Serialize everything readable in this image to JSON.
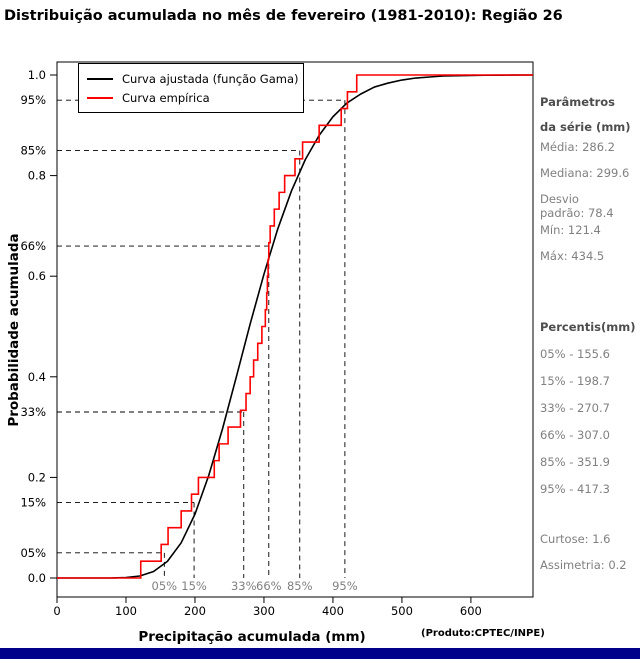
{
  "title": "Distribuição acumulada no mês de fevereiro (1981-2010): Região 26",
  "footer_color": "#00008b",
  "side_panel": {
    "heading_line1": "Parâmetros",
    "heading_line2": "da série (mm)",
    "stats": [
      "Média: 286.2",
      "Mediana: 299.6",
      "Desvio",
      "padrão: 78.4",
      "Mín: 121.4",
      "Máx: 434.5"
    ],
    "percentis_heading": "Percentis(mm)",
    "extra": [
      "Curtose: 1.6",
      "Assimetria: 0.2"
    ]
  },
  "chart_data": {
    "type": "line",
    "title": "Distribuição acumulada no mês de fevereiro (1981-2010): Região 26",
    "xlabel": "Precipitação acumulada (mm)",
    "xlabel_note": "(Produto:CPTEC/INPE)",
    "ylabel": "Probabilidade acumulada",
    "xlim": [
      0,
      690
    ],
    "ylim": [
      0,
      1
    ],
    "grid": false,
    "legend_position": "top-left",
    "x_ticks": [
      0,
      100,
      200,
      300,
      400,
      500,
      600
    ],
    "y_tick_labels": [
      "0.0",
      "0.2",
      "0.4",
      "0.6",
      "0.8",
      "1.0"
    ],
    "percentiles": [
      {
        "label": "05%",
        "p": 0.05,
        "value": 155.6
      },
      {
        "label": "15%",
        "p": 0.15,
        "value": 198.7
      },
      {
        "label": "33%",
        "p": 0.33,
        "value": 270.7
      },
      {
        "label": "66%",
        "p": 0.66,
        "value": 307.0
      },
      {
        "label": "85%",
        "p": 0.85,
        "value": 351.9
      },
      {
        "label": "95%",
        "p": 0.95,
        "value": 417.3
      }
    ],
    "series": [
      {
        "name": "Curva ajustada (função Gama)",
        "color": "#000000",
        "kind": "line",
        "x": [
          0,
          40,
          80,
          100,
          120,
          140,
          160,
          180,
          200,
          220,
          240,
          260,
          280,
          300,
          320,
          340,
          360,
          380,
          400,
          420,
          440,
          460,
          480,
          500,
          520,
          540,
          560,
          580,
          600,
          620,
          640,
          660,
          690
        ],
        "y": [
          0,
          0,
          0.0001,
          0.001,
          0.004,
          0.013,
          0.033,
          0.07,
          0.127,
          0.204,
          0.297,
          0.4,
          0.505,
          0.604,
          0.694,
          0.77,
          0.832,
          0.88,
          0.917,
          0.944,
          0.962,
          0.976,
          0.984,
          0.99,
          0.994,
          0.996,
          0.998,
          0.9986,
          0.999,
          0.9995,
          0.9997,
          0.9998,
          1
        ]
      },
      {
        "name": "Curva empírica",
        "color": "#ff0000",
        "kind": "step-ecdf",
        "values": [
          121.4,
          151,
          161,
          180,
          195,
          205,
          228,
          235,
          248,
          266,
          274,
          280,
          285,
          291,
          297,
          302,
          304,
          305,
          306,
          307,
          309,
          315,
          322,
          330,
          345,
          356,
          380,
          412,
          421,
          434.5
        ]
      }
    ]
  }
}
